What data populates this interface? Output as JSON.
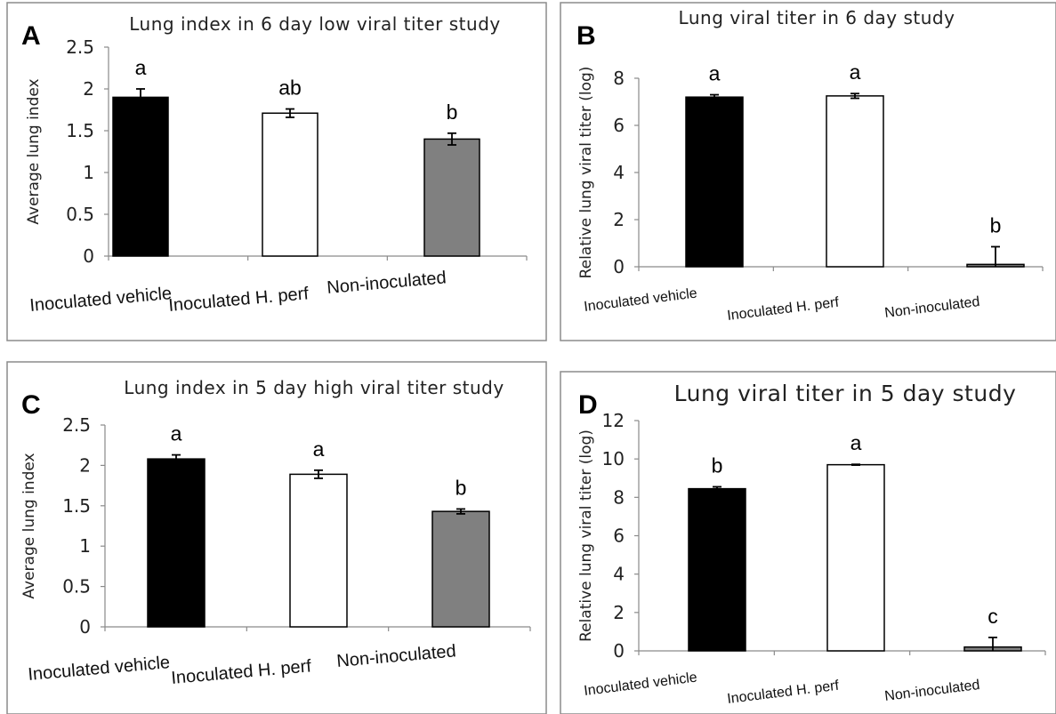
{
  "colors": {
    "inoculated_vehicle": "#000000",
    "inoculated_h_perf": "#ffffff",
    "non_inoculated": "#808080",
    "bar_outline": "#000000"
  },
  "chart_data": [
    {
      "panel": "A",
      "type": "bar",
      "title": "Lung index in 6 day low viral titer study",
      "xlabel": "",
      "ylabel": "Average lung index",
      "categories": [
        "Inoculated vehicle",
        "Inoculated H. perf",
        "Non-inoculated"
      ],
      "values": [
        1.9,
        1.71,
        1.4
      ],
      "errors": [
        0.1,
        0.05,
        0.07
      ],
      "significance": [
        "a",
        "ab",
        "b"
      ],
      "ylim": [
        0,
        2.5
      ],
      "yticks": [
        "0",
        "0.5",
        "1",
        "1.5",
        "2",
        "2.5"
      ],
      "grid": false
    },
    {
      "panel": "B",
      "type": "bar",
      "title": "Lung viral titer in 6 day study",
      "xlabel": "",
      "ylabel": "Relative lung viral titer (log)",
      "categories": [
        "Inoculated vehicle",
        "Inoculated H. perf",
        "Non-inoculated"
      ],
      "values": [
        7.2,
        7.25,
        0.1
      ],
      "errors": [
        0.1,
        0.1,
        0.75
      ],
      "significance": [
        "a",
        "a",
        "b"
      ],
      "ylim": [
        0,
        8
      ],
      "yticks": [
        "0",
        "2",
        "4",
        "6",
        "8"
      ],
      "grid": false
    },
    {
      "panel": "C",
      "type": "bar",
      "title": "Lung index in 5 day high viral titer study",
      "xlabel": "",
      "ylabel": "Average lung index",
      "categories": [
        "Inoculated vehicle",
        "Inoculated H. perf",
        "Non-inoculated"
      ],
      "values": [
        2.08,
        1.89,
        1.43
      ],
      "errors": [
        0.05,
        0.05,
        0.03
      ],
      "significance": [
        "a",
        "a",
        "b"
      ],
      "ylim": [
        0,
        2.5
      ],
      "yticks": [
        "0",
        "0.5",
        "1",
        "1.5",
        "2",
        "2.5"
      ],
      "grid": false
    },
    {
      "panel": "D",
      "type": "bar",
      "title": "Lung viral titer in 5 day study",
      "xlabel": "",
      "ylabel": "Relative lung viral titer (log)",
      "categories": [
        "Inoculated vehicle",
        "Inoculated H. perf",
        "Non-inoculated"
      ],
      "values": [
        8.45,
        9.7,
        0.2
      ],
      "errors": [
        0.1,
        0.02,
        0.5
      ],
      "significance": [
        "b",
        "a",
        "c"
      ],
      "ylim": [
        0,
        12
      ],
      "yticks": [
        "0",
        "2",
        "4",
        "6",
        "8",
        "10",
        "12"
      ],
      "grid": false
    }
  ]
}
